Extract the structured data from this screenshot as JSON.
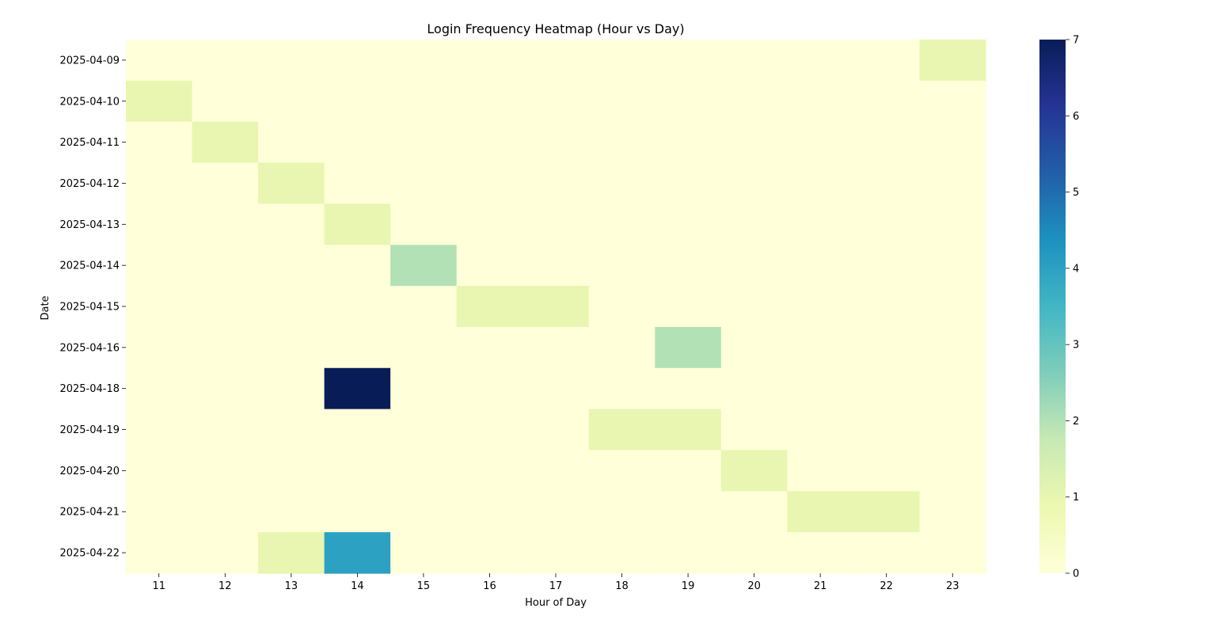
{
  "chart_data": {
    "type": "heatmap",
    "title": "Login Frequency Heatmap (Hour vs Day)",
    "xlabel": "Hour of Day",
    "ylabel": "Date",
    "x": [
      "11",
      "12",
      "13",
      "14",
      "15",
      "16",
      "17",
      "18",
      "19",
      "20",
      "21",
      "22",
      "23"
    ],
    "y": [
      "2025-04-09",
      "2025-04-10",
      "2025-04-11",
      "2025-04-12",
      "2025-04-13",
      "2025-04-14",
      "2025-04-15",
      "2025-04-16",
      "2025-04-18",
      "2025-04-19",
      "2025-04-20",
      "2025-04-21",
      "2025-04-22"
    ],
    "values": [
      [
        0,
        0,
        0,
        0,
        0,
        0,
        0,
        0,
        0,
        0,
        0,
        0,
        1
      ],
      [
        1,
        0,
        0,
        0,
        0,
        0,
        0,
        0,
        0,
        0,
        0,
        0,
        0
      ],
      [
        0,
        1,
        0,
        0,
        0,
        0,
        0,
        0,
        0,
        0,
        0,
        0,
        0
      ],
      [
        0,
        0,
        1,
        0,
        0,
        0,
        0,
        0,
        0,
        0,
        0,
        0,
        0
      ],
      [
        0,
        0,
        0,
        1,
        0,
        0,
        0,
        0,
        0,
        0,
        0,
        0,
        0
      ],
      [
        0,
        0,
        0,
        0,
        2,
        0,
        0,
        0,
        0,
        0,
        0,
        0,
        0
      ],
      [
        0,
        0,
        0,
        0,
        0,
        1,
        1,
        0,
        0,
        0,
        0,
        0,
        0
      ],
      [
        0,
        0,
        0,
        0,
        0,
        0,
        0,
        0,
        2,
        0,
        0,
        0,
        0
      ],
      [
        0,
        0,
        0,
        7,
        0,
        0,
        0,
        0,
        0,
        0,
        0,
        0,
        0
      ],
      [
        0,
        0,
        0,
        0,
        0,
        0,
        0,
        1,
        1,
        0,
        0,
        0,
        0
      ],
      [
        0,
        0,
        0,
        0,
        0,
        0,
        0,
        0,
        0,
        1,
        0,
        0,
        0
      ],
      [
        0,
        0,
        0,
        0,
        0,
        0,
        0,
        0,
        0,
        0,
        1,
        1,
        0
      ],
      [
        0,
        0,
        1,
        4,
        0,
        0,
        0,
        0,
        0,
        0,
        0,
        0,
        0
      ]
    ],
    "colorbar": {
      "range": [
        0,
        7
      ],
      "ticks": [
        "0",
        "1",
        "2",
        "3",
        "4",
        "5",
        "6",
        "7"
      ],
      "colormap": "YlGnBu",
      "stops": [
        "#ffffd9",
        "#edf8b1",
        "#c7e9b4",
        "#7fcdbb",
        "#41b6c4",
        "#1d91c0",
        "#225ea8",
        "#253494",
        "#081d58"
      ]
    },
    "grid": false
  }
}
